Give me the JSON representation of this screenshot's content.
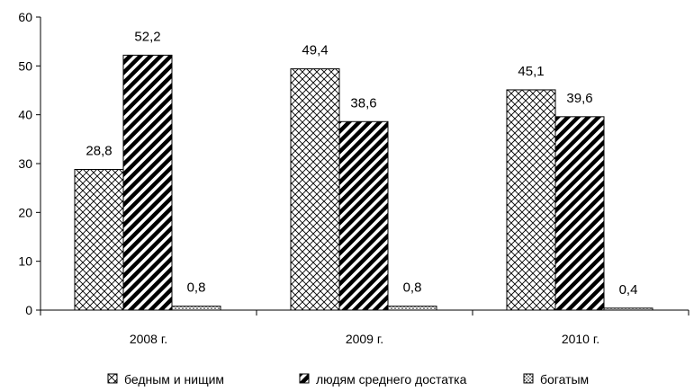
{
  "chart_data": {
    "type": "bar",
    "categories": [
      "2008 г.",
      "2009 г.",
      "2010 г."
    ],
    "series": [
      {
        "name": "бедным и нищим",
        "values": [
          28.8,
          49.4,
          45.1
        ],
        "value_labels": [
          "28,8",
          "49,4",
          "45,1"
        ],
        "pattern": "crosshatch"
      },
      {
        "name": "людям среднего достатка",
        "values": [
          52.2,
          38.6,
          39.6
        ],
        "value_labels": [
          "52,2",
          "38,6",
          "39,6"
        ],
        "pattern": "diagonal-stripes"
      },
      {
        "name": "богатым",
        "values": [
          0.8,
          0.8,
          0.4
        ],
        "value_labels": [
          "0,8",
          "0,8",
          "0,4"
        ],
        "pattern": "dots"
      }
    ],
    "y_ticks": [
      "0",
      "10",
      "20",
      "30",
      "40",
      "50",
      "60"
    ],
    "ylim": [
      0,
      60
    ],
    "grid": false,
    "legend_position": "bottom",
    "xlabel": "",
    "ylabel": "",
    "title": ""
  }
}
